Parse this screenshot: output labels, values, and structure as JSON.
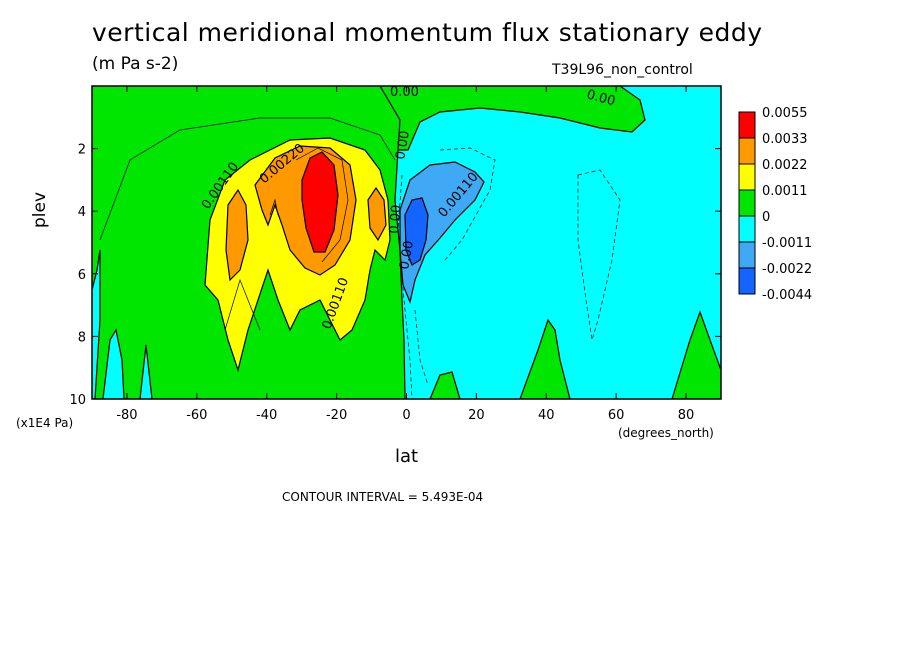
{
  "title": "vertical meridional momentum flux stationary eddy",
  "units": "(m Pa s-2)",
  "run_label": "T39L96_non_control",
  "contour_interval": "CONTOUR INTERVAL = 5.493E-04",
  "colors": {
    "c_0055": "#ff0000",
    "c_0033": "#ff9900",
    "c_0022": "#ffff00",
    "c_0011": "#00e600",
    "c_0": "#00ffff",
    "c_m0011": "#3fa9f5",
    "c_m0022": "#1464ff"
  },
  "chart_data": {
    "type": "contour",
    "xlabel": "lat",
    "xunit": "(degrees_north)",
    "ylabel": "plev",
    "yunit": "(x1E4 Pa)",
    "xlim": [
      -90,
      90
    ],
    "ylim": [
      0,
      10
    ],
    "y_inverted": true,
    "xticks": [
      "-80",
      "-60",
      "-40",
      "-20",
      "0",
      "20",
      "40",
      "60",
      "80"
    ],
    "yticks": [
      "2",
      "4",
      "6",
      "8",
      "10"
    ],
    "legend_levels": [
      "0.0055",
      "0.0033",
      "0.0022",
      "0.0011",
      "0",
      "-0.0011",
      "-0.0022",
      "-0.0044"
    ],
    "contour_labels": [
      "0.00110",
      "0.00220",
      "0.00110",
      "0.00",
      "0.00",
      "0.00",
      "0.00110",
      "0.00",
      "0.00"
    ],
    "features": [
      {
        "level": "0.0055",
        "lat_center": -25,
        "plev_top": 2.2,
        "plev_bottom": 5.0
      },
      {
        "level": "-0.0044",
        "lat_center": 3,
        "plev_top": 3.8,
        "plev_bottom": 5.8
      }
    ]
  }
}
